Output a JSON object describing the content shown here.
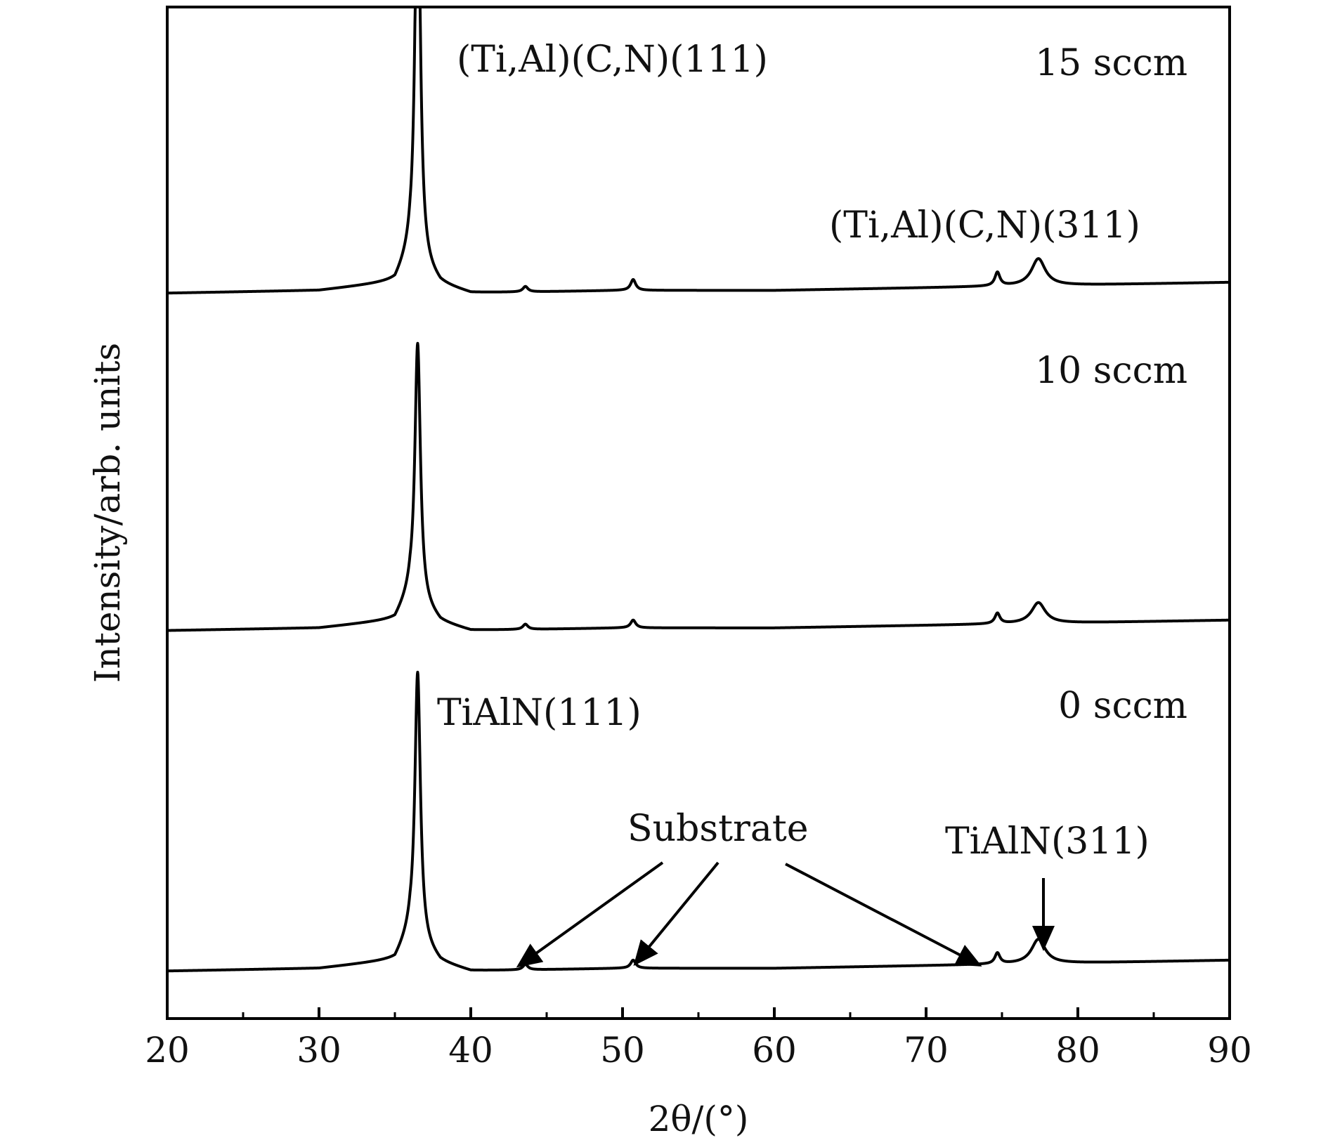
{
  "chart_data": {
    "type": "line",
    "xlabel": "2θ/(°)",
    "ylabel": "Intensity/arb. units",
    "xlim": [
      20,
      90
    ],
    "x_ticks": [
      20,
      30,
      40,
      50,
      60,
      70,
      80,
      90
    ],
    "y_ticks_shown": false,
    "grid": false,
    "legend": "none",
    "line_color": "#000000",
    "series": [
      {
        "name": "0 sccm",
        "baseline": [
          [
            20,
            0.02
          ],
          [
            30,
            0.03
          ],
          [
            35,
            0.06
          ],
          [
            36,
            0.15
          ],
          [
            38,
            0.05
          ],
          [
            40,
            0.02
          ],
          [
            50,
            0.03
          ],
          [
            60,
            0.03
          ],
          [
            70,
            0.04
          ],
          [
            80,
            0.05
          ],
          [
            90,
            0.06
          ]
        ],
        "peaks": [
          {
            "x": 36.5,
            "height": 1.0,
            "width": 0.22
          },
          {
            "x": 43.6,
            "height": 0.02,
            "width": 0.2
          },
          {
            "x": 50.7,
            "height": 0.03,
            "width": 0.2
          },
          {
            "x": 74.7,
            "height": 0.04,
            "width": 0.2
          },
          {
            "x": 77.4,
            "height": 0.09,
            "width": 0.55
          }
        ]
      },
      {
        "name": "10 sccm",
        "baseline": [
          [
            20,
            0.02
          ],
          [
            30,
            0.03
          ],
          [
            35,
            0.06
          ],
          [
            36,
            0.15
          ],
          [
            38,
            0.05
          ],
          [
            40,
            0.02
          ],
          [
            50,
            0.03
          ],
          [
            60,
            0.03
          ],
          [
            70,
            0.04
          ],
          [
            80,
            0.05
          ],
          [
            90,
            0.06
          ]
        ],
        "peaks": [
          {
            "x": 36.5,
            "height": 1.0,
            "width": 0.22
          },
          {
            "x": 43.6,
            "height": 0.02,
            "width": 0.2
          },
          {
            "x": 50.7,
            "height": 0.03,
            "width": 0.2
          },
          {
            "x": 74.7,
            "height": 0.04,
            "width": 0.2
          },
          {
            "x": 77.4,
            "height": 0.08,
            "width": 0.55
          }
        ]
      },
      {
        "name": "15 sccm",
        "baseline": [
          [
            20,
            0.02
          ],
          [
            30,
            0.03
          ],
          [
            35,
            0.06
          ],
          [
            36,
            0.15
          ],
          [
            38,
            0.05
          ],
          [
            40,
            0.02
          ],
          [
            50,
            0.03
          ],
          [
            60,
            0.03
          ],
          [
            70,
            0.04
          ],
          [
            80,
            0.05
          ],
          [
            90,
            0.06
          ]
        ],
        "peaks": [
          {
            "x": 36.5,
            "height": 1.6,
            "width": 0.2
          },
          {
            "x": 43.6,
            "height": 0.02,
            "width": 0.2
          },
          {
            "x": 50.7,
            "height": 0.04,
            "width": 0.2
          },
          {
            "x": 74.7,
            "height": 0.05,
            "width": 0.2
          },
          {
            "x": 77.4,
            "height": 0.1,
            "width": 0.55
          }
        ]
      }
    ],
    "annotations": {
      "peak_111_top": "(Ti,Al)(C,N)(111)",
      "peak_311_top": "(Ti,Al)(C,N)(311)",
      "peak_111_bottom": "TiAlN(111)",
      "peak_311_bottom": "TiAlN(311)",
      "substrate": "Substrate"
    }
  }
}
